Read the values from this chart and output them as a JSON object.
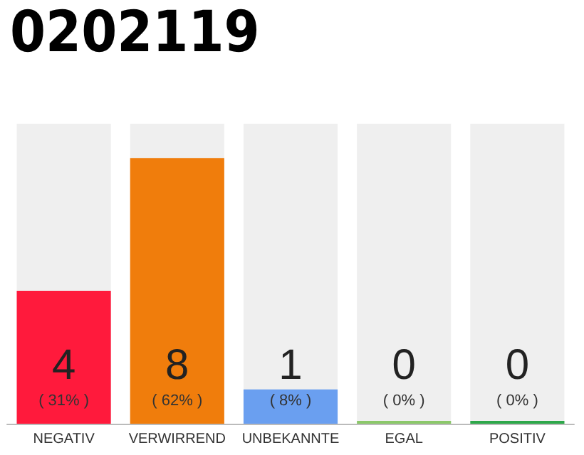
{
  "chart_data": {
    "type": "bar",
    "title": "0202119",
    "categories": [
      "NEGATIV",
      "VERWIRREND",
      "UNBEKANNTE",
      "EGAL",
      "POSITIV"
    ],
    "values": [
      31,
      62,
      8,
      0,
      0
    ],
    "colors": [
      "#ff1a3c",
      "#f07d0c",
      "#6a9ff0",
      "#8bc86a",
      "#2ea84a"
    ],
    "value_labels": [
      "4\n( 31% )",
      "8\n( 62% )",
      "1\n( 8% )",
      "0\n( 0% )",
      "0\n( 0% )"
    ]
  }
}
